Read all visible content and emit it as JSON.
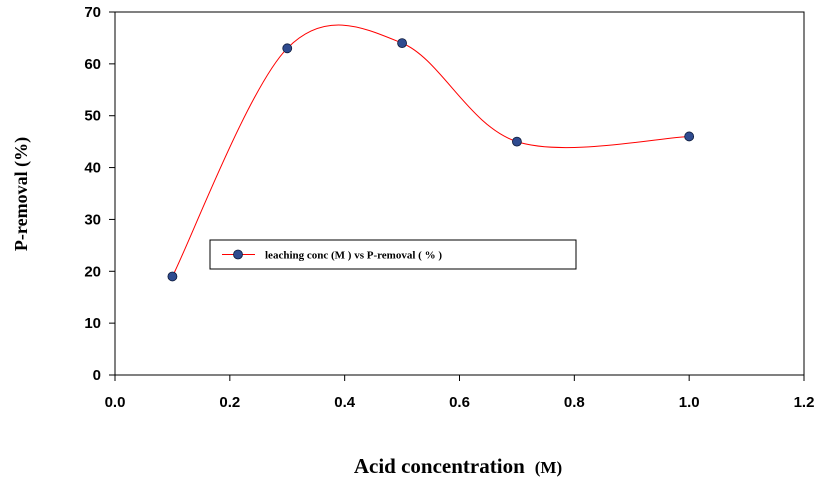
{
  "chart_data": {
    "type": "scatter",
    "title": "",
    "xlabel": "Acid concentration",
    "xlabel_unit": "(M)",
    "ylabel": "P-removal (%)",
    "xlim": [
      0.0,
      1.2
    ],
    "ylim": [
      0,
      70
    ],
    "xticks": [
      "0.0",
      "0.2",
      "0.4",
      "0.6",
      "0.8",
      "1.0",
      "1.2"
    ],
    "yticks": [
      "0",
      "10",
      "20",
      "30",
      "40",
      "50",
      "60",
      "70"
    ],
    "grid": false,
    "legend_position": "center-left",
    "series": [
      {
        "name": "leaching conc (M ) vs P-removal ( % )",
        "line": "smooth",
        "x": [
          0.1,
          0.3,
          0.5,
          0.7,
          1.0
        ],
        "y": [
          19,
          63,
          64,
          45,
          46
        ]
      }
    ],
    "colors": {
      "line": "#ff0000",
      "marker_fill": "#2f4b8f",
      "marker_stroke": "#0d1a3a",
      "axis": "#000000"
    }
  }
}
